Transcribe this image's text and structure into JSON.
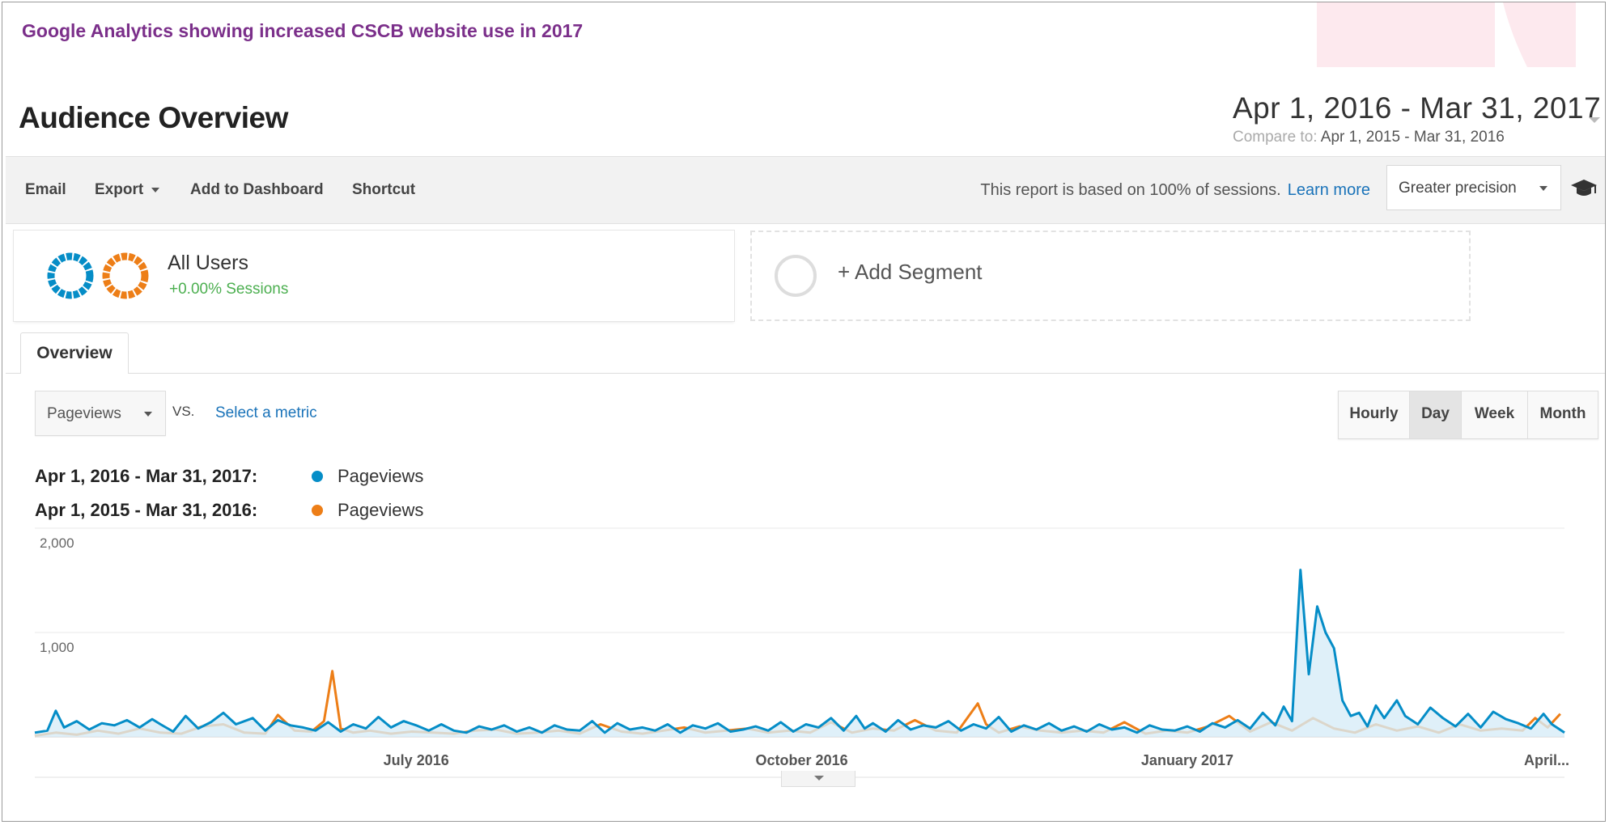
{
  "caption": "Google Analytics showing increased CSCB website use in 2017",
  "page_title": "Audience Overview",
  "date_picker": {
    "range": "Apr 1, 2016 - Mar 31, 2017",
    "compare_label": "Compare to:",
    "compare_range": "Apr 1, 2015 - Mar 31, 2016"
  },
  "toolbar": {
    "email": "Email",
    "export": "Export",
    "add_to_dashboard": "Add to Dashboard",
    "shortcut": "Shortcut",
    "report_note": "This report is based on 100% of sessions.",
    "learn_more": "Learn more",
    "precision": "Greater precision"
  },
  "segments": {
    "all_users": {
      "title": "All Users",
      "sub": "+0.00% Sessions"
    },
    "add_segment": "+ Add Segment"
  },
  "tabs": {
    "overview": "Overview"
  },
  "controls": {
    "metric": "Pageviews",
    "vs": "VS.",
    "select_metric": "Select a metric",
    "granularity": [
      "Hourly",
      "Day",
      "Week",
      "Month"
    ],
    "granularity_active": "Day"
  },
  "legend": [
    {
      "range": "Apr 1, 2016 - Mar 31, 2017:",
      "label": "Pageviews",
      "color": "#058dc7"
    },
    {
      "range": "Apr 1, 2015 - Mar 31, 2016:",
      "label": "Pageviews",
      "color": "#ed7e17"
    }
  ],
  "chart_data": {
    "type": "line",
    "y_ticks": [
      "2,000",
      "1,000"
    ],
    "ylim": [
      0,
      2000
    ],
    "x_ticks": [
      {
        "label": "July 2016",
        "day": 91
      },
      {
        "label": "October 2016",
        "day": 183
      },
      {
        "label": "January 2017",
        "day": 275
      },
      {
        "label": "April...",
        "day": 365
      }
    ],
    "grid": true,
    "series": [
      {
        "name": "Pageviews",
        "period": "Apr 1, 2016 - Mar 31, 2017",
        "color": "#058dc7",
        "fill": true,
        "points": [
          [
            0,
            40
          ],
          [
            3,
            60
          ],
          [
            5,
            250
          ],
          [
            7,
            90
          ],
          [
            10,
            150
          ],
          [
            13,
            70
          ],
          [
            16,
            130
          ],
          [
            19,
            110
          ],
          [
            22,
            160
          ],
          [
            25,
            90
          ],
          [
            28,
            170
          ],
          [
            30,
            120
          ],
          [
            33,
            50
          ],
          [
            36,
            200
          ],
          [
            39,
            80
          ],
          [
            42,
            140
          ],
          [
            45,
            230
          ],
          [
            48,
            120
          ],
          [
            52,
            180
          ],
          [
            55,
            60
          ],
          [
            58,
            160
          ],
          [
            61,
            110
          ],
          [
            64,
            90
          ],
          [
            67,
            60
          ],
          [
            70,
            140
          ],
          [
            73,
            50
          ],
          [
            76,
            120
          ],
          [
            79,
            80
          ],
          [
            82,
            190
          ],
          [
            85,
            90
          ],
          [
            88,
            150
          ],
          [
            91,
            110
          ],
          [
            94,
            60
          ],
          [
            97,
            120
          ],
          [
            100,
            60
          ],
          [
            103,
            40
          ],
          [
            106,
            100
          ],
          [
            109,
            70
          ],
          [
            112,
            110
          ],
          [
            115,
            50
          ],
          [
            118,
            90
          ],
          [
            121,
            40
          ],
          [
            124,
            110
          ],
          [
            127,
            70
          ],
          [
            130,
            60
          ],
          [
            133,
            150
          ],
          [
            136,
            40
          ],
          [
            139,
            130
          ],
          [
            142,
            70
          ],
          [
            145,
            90
          ],
          [
            148,
            60
          ],
          [
            151,
            120
          ],
          [
            154,
            40
          ],
          [
            157,
            110
          ],
          [
            160,
            80
          ],
          [
            163,
            130
          ],
          [
            166,
            50
          ],
          [
            169,
            70
          ],
          [
            172,
            100
          ],
          [
            175,
            60
          ],
          [
            178,
            140
          ],
          [
            181,
            50
          ],
          [
            184,
            120
          ],
          [
            187,
            90
          ],
          [
            190,
            180
          ],
          [
            193,
            60
          ],
          [
            196,
            200
          ],
          [
            198,
            80
          ],
          [
            200,
            130
          ],
          [
            203,
            50
          ],
          [
            206,
            160
          ],
          [
            209,
            70
          ],
          [
            212,
            110
          ],
          [
            215,
            90
          ],
          [
            218,
            150
          ],
          [
            221,
            60
          ],
          [
            224,
            120
          ],
          [
            227,
            80
          ],
          [
            230,
            190
          ],
          [
            233,
            50
          ],
          [
            236,
            110
          ],
          [
            239,
            70
          ],
          [
            242,
            130
          ],
          [
            245,
            60
          ],
          [
            248,
            100
          ],
          [
            251,
            50
          ],
          [
            254,
            120
          ],
          [
            257,
            70
          ],
          [
            260,
            90
          ],
          [
            263,
            40
          ],
          [
            266,
            110
          ],
          [
            269,
            70
          ],
          [
            272,
            60
          ],
          [
            275,
            100
          ],
          [
            278,
            50
          ],
          [
            281,
            130
          ],
          [
            284,
            90
          ],
          [
            287,
            160
          ],
          [
            290,
            80
          ],
          [
            293,
            230
          ],
          [
            296,
            110
          ],
          [
            298,
            290
          ],
          [
            300,
            150
          ],
          [
            302,
            1600
          ],
          [
            304,
            600
          ],
          [
            306,
            1250
          ],
          [
            308,
            1000
          ],
          [
            310,
            850
          ],
          [
            312,
            350
          ],
          [
            314,
            200
          ],
          [
            316,
            230
          ],
          [
            318,
            100
          ],
          [
            320,
            300
          ],
          [
            322,
            180
          ],
          [
            325,
            350
          ],
          [
            327,
            200
          ],
          [
            330,
            120
          ],
          [
            333,
            280
          ],
          [
            336,
            180
          ],
          [
            339,
            100
          ],
          [
            342,
            220
          ],
          [
            345,
            90
          ],
          [
            348,
            240
          ],
          [
            351,
            170
          ],
          [
            354,
            130
          ],
          [
            357,
            80
          ],
          [
            360,
            220
          ],
          [
            362,
            120
          ],
          [
            365,
            40
          ]
        ]
      },
      {
        "name": "Pageviews",
        "period": "Apr 1, 2015 - Mar 31, 2016",
        "color": "#ed7e17",
        "fill": false,
        "points": [
          [
            0,
            10
          ],
          [
            5,
            40
          ],
          [
            10,
            20
          ],
          [
            15,
            60
          ],
          [
            20,
            30
          ],
          [
            25,
            80
          ],
          [
            30,
            40
          ],
          [
            35,
            30
          ],
          [
            40,
            100
          ],
          [
            45,
            120
          ],
          [
            50,
            40
          ],
          [
            55,
            30
          ],
          [
            58,
            210
          ],
          [
            62,
            60
          ],
          [
            66,
            50
          ],
          [
            69,
            150
          ],
          [
            71,
            630
          ],
          [
            73,
            80
          ],
          [
            76,
            40
          ],
          [
            80,
            60
          ],
          [
            85,
            30
          ],
          [
            90,
            50
          ],
          [
            95,
            40
          ],
          [
            100,
            30
          ],
          [
            105,
            60
          ],
          [
            110,
            70
          ],
          [
            115,
            30
          ],
          [
            120,
            40
          ],
          [
            125,
            60
          ],
          [
            130,
            30
          ],
          [
            135,
            120
          ],
          [
            140,
            50
          ],
          [
            145,
            30
          ],
          [
            150,
            60
          ],
          [
            155,
            90
          ],
          [
            160,
            40
          ],
          [
            165,
            60
          ],
          [
            170,
            80
          ],
          [
            175,
            40
          ],
          [
            180,
            60
          ],
          [
            185,
            40
          ],
          [
            190,
            140
          ],
          [
            195,
            40
          ],
          [
            200,
            80
          ],
          [
            205,
            60
          ],
          [
            210,
            160
          ],
          [
            215,
            60
          ],
          [
            220,
            40
          ],
          [
            225,
            320
          ],
          [
            227,
            120
          ],
          [
            230,
            40
          ],
          [
            235,
            100
          ],
          [
            240,
            60
          ],
          [
            245,
            40
          ],
          [
            250,
            60
          ],
          [
            255,
            40
          ],
          [
            260,
            140
          ],
          [
            265,
            30
          ],
          [
            270,
            60
          ],
          [
            275,
            40
          ],
          [
            280,
            100
          ],
          [
            285,
            200
          ],
          [
            290,
            50
          ],
          [
            295,
            140
          ],
          [
            300,
            60
          ],
          [
            305,
            180
          ],
          [
            310,
            80
          ],
          [
            315,
            40
          ],
          [
            320,
            120
          ],
          [
            325,
            60
          ],
          [
            330,
            100
          ],
          [
            335,
            40
          ],
          [
            340,
            120
          ],
          [
            345,
            60
          ],
          [
            350,
            80
          ],
          [
            355,
            60
          ],
          [
            358,
            180
          ],
          [
            361,
            90
          ],
          [
            364,
            220
          ]
        ]
      }
    ]
  }
}
